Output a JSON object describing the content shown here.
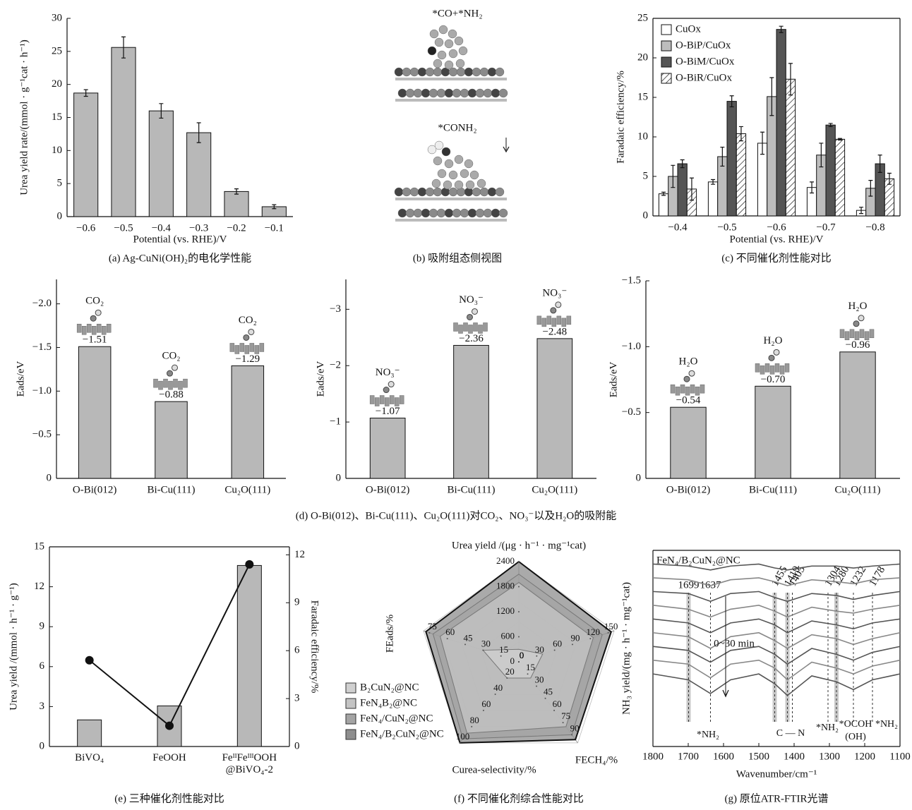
{
  "chart_data": [
    {
      "type": "bar",
      "caption": "(a) Ag-CuNi(OH)₂的电化学性能",
      "xlabel": "Potential (vs. RHE)/V",
      "ylabel": "Urea yield rate/(mmol · g⁻¹cat · h⁻¹)",
      "categories": [
        "−0.6",
        "−0.5",
        "−0.4",
        "−0.3",
        "−0.2",
        "−0.1"
      ],
      "values": [
        18.7,
        25.6,
        16.0,
        12.7,
        3.8,
        1.5
      ],
      "errors": [
        0.5,
        1.6,
        1.1,
        1.5,
        0.4,
        0.3
      ],
      "color": "#b8b8b8",
      "ylim": [
        0,
        30
      ],
      "yticks": [
        0,
        5,
        10,
        15,
        20,
        25,
        30
      ]
    },
    {
      "type": "bar",
      "caption": "(c) 不同催化剂性能对比",
      "xlabel": "Potential (vs. RHE)/V",
      "ylabel": "Faradaic efficiency/%",
      "box": true,
      "legend": "upper left",
      "categories": [
        "−0.4",
        "−0.5",
        "−0.6",
        "−0.7",
        "−0.8"
      ],
      "series": [
        {
          "name": "CuOx",
          "color": "#ffffff",
          "values": [
            2.8,
            4.3,
            9.2,
            3.6,
            0.7
          ],
          "errors": [
            0.2,
            0.3,
            1.4,
            0.7,
            0.4
          ]
        },
        {
          "name": "O-BiP/CuOx",
          "color": "#bdbdbd",
          "values": [
            5.0,
            7.5,
            15.1,
            7.7,
            3.5
          ],
          "errors": [
            1.4,
            1.2,
            2.4,
            1.5,
            1.0
          ]
        },
        {
          "name": "O-BiM/CuOx",
          "color": "#555555",
          "values": [
            6.6,
            14.5,
            23.6,
            11.5,
            6.6
          ],
          "errors": [
            0.5,
            0.7,
            0.4,
            0.2,
            1.1
          ]
        },
        {
          "name": "O-BiR/CuOx",
          "color": "#ffffff",
          "hatch": true,
          "values": [
            3.4,
            10.4,
            17.3,
            9.7,
            4.7
          ],
          "errors": [
            1.4,
            0.9,
            2.0,
            0.1,
            0.7
          ]
        }
      ],
      "ylim": [
        0,
        25
      ],
      "yticks": [
        0,
        5,
        10,
        15,
        20,
        25
      ]
    },
    {
      "type": "bar",
      "ylabel": "Eads/eV",
      "categories": [
        "O-Bi(012)",
        "Bi-Cu(111)",
        "Cu₂O(111)"
      ],
      "values": [
        -1.51,
        -0.88,
        -1.29
      ],
      "value_labels": [
        "−1.51",
        "−0.88",
        "−1.29"
      ],
      "molecules": [
        "CO₂",
        "CO₂",
        "CO₂"
      ],
      "color": "#b8b8b8",
      "ylim": [
        0,
        -2.28
      ],
      "yticks": [
        0,
        {
          "value": -0.5,
          "label": "−0.5"
        },
        {
          "value": -1,
          "label": "−1.0"
        },
        {
          "value": -1.5,
          "label": "−1.5"
        },
        {
          "value": -2,
          "label": "−2.0"
        }
      ]
    },
    {
      "type": "bar",
      "ylabel": "Eads/eV",
      "categories": [
        "O-Bi(012)",
        "Bi-Cu(111)",
        "Cu₂O(111)"
      ],
      "values": [
        -1.07,
        -2.36,
        -2.48
      ],
      "value_labels": [
        "−1.07",
        "−2.36",
        "−2.48"
      ],
      "molecules": [
        "NO₃⁻",
        "NO₃⁻",
        "NO₃⁻"
      ],
      "color": "#b8b8b8",
      "ylim": [
        0,
        -3.53
      ],
      "yticks": [
        0,
        {
          "value": -1,
          "label": "−1"
        },
        {
          "value": -2,
          "label": "−2"
        },
        {
          "value": -3,
          "label": "−3"
        }
      ]
    },
    {
      "type": "bar",
      "ylabel": "Eads/eV",
      "categories": [
        "O-Bi(012)",
        "Bi-Cu(111)",
        "Cu₂O(111)"
      ],
      "values": [
        -0.54,
        -0.7,
        -0.96
      ],
      "value_labels": [
        "−0.54",
        "−0.70",
        "−0.96"
      ],
      "molecules": [
        "H₂O",
        "H₂O",
        "H₂O"
      ],
      "color": "#b8b8b8",
      "ylim": [
        0,
        -1.5
      ],
      "yticks": [
        0,
        {
          "value": -0.5,
          "label": "−0.5"
        },
        {
          "value": -1,
          "label": "−1.0"
        },
        {
          "value": -1.5,
          "label": "−1.5"
        }
      ]
    },
    {
      "type": "bar_line",
      "caption": "(e) 三种催化剂性能对比",
      "ylabel": "Urea yield /(mmol · h⁻¹ · g⁻¹)",
      "y2label": "Faradaic efficiency/%",
      "box": true,
      "categories": [
        "BiVO₄",
        "FeOOH",
        "FeᴵᴵFeᴵᴵᴵOOH\n@BiVO₄-2"
      ],
      "series": [
        {
          "kind": "bar",
          "color": "#b8b8b8",
          "values": [
            2.0,
            3.05,
            13.6
          ]
        },
        {
          "kind": "line",
          "axis": "y2",
          "color": "#111111",
          "values": [
            5.4,
            1.3,
            11.4
          ]
        }
      ],
      "ylim": [
        0,
        15
      ],
      "yticks": [
        0,
        3,
        6,
        9,
        12,
        15
      ],
      "y2lim": [
        0,
        12.5
      ],
      "y2ticks": [
        0,
        3,
        6,
        9,
        12
      ]
    },
    {
      "type": "radar",
      "caption": "(f) 不同催化剂综合性能对比",
      "legend": "lower left",
      "axes": [
        {
          "label": "Urea yield /(μg · h⁻¹ · mg⁻¹cat)",
          "lim": [
            0,
            2400
          ],
          "ticks": [
            0,
            600,
            1200,
            1800,
            2400
          ]
        },
        {
          "lim": [
            0,
            160
          ],
          "ticks": [
            0,
            30,
            60,
            90,
            120,
            150
          ]
        },
        {
          "label": "FECH₄/%",
          "lim": [
            0,
            100
          ],
          "ticks": [
            0,
            15,
            30,
            45,
            60,
            75,
            90
          ]
        },
        {
          "label": "Curea-selectivity/%",
          "lim": [
            0,
            100
          ],
          "ticks": [
            0,
            20,
            40,
            60,
            80,
            100
          ]
        },
        {
          "label": "FEads/%",
          "lim": [
            0,
            80
          ],
          "ticks": [
            0,
            15,
            30,
            45,
            60,
            75
          ]
        }
      ],
      "series": [
        {
          "name": "B₂CuN₂@NC",
          "color": "#d0d0d0",
          "values": [
            300,
            40,
            20,
            20,
            30
          ]
        },
        {
          "name": "FeN₄B₂@NC",
          "color": "#c4c4c4",
          "values": [
            1900,
            125,
            80,
            88,
            66
          ]
        },
        {
          "name": "FeN₄/CuN₂@NC",
          "color": "#a4a4a4",
          "values": [
            2100,
            140,
            90,
            95,
            72
          ]
        },
        {
          "name": "FeN₄/B₂CuN₂@NC",
          "color": "#8e8e8e",
          "values": [
            2400,
            155,
            96,
            100,
            78
          ]
        }
      ]
    },
    {
      "type": "spectra",
      "caption": "(g) 原位ATR-FTIR光谱",
      "title": "FeN₄/B₂CuN₂@NC",
      "xlabel": "Wavenumber/cm⁻¹",
      "ylabel": "NH₃ yield/(mg · h⁻¹ · mg⁻¹cat)",
      "box": true,
      "time_label": "0~30 min",
      "xlim": [
        1800,
        1100
      ],
      "xticks": [
        1800,
        1700,
        1600,
        1500,
        1400,
        1300,
        1200,
        1100
      ],
      "ylim": [
        0,
        10
      ],
      "x": [
        1800,
        1700,
        1637,
        1580,
        1500,
        1455,
        1419,
        1350,
        1280,
        1232,
        1178,
        1100
      ],
      "series": [
        {
          "color": "#555555",
          "values": [
            9.3,
            9.2,
            9.0,
            9.2,
            9.3,
            9.1,
            9.0,
            9.2,
            9.2,
            9.1,
            9.2,
            9.3
          ]
        },
        {
          "color": "#888888",
          "values": [
            8.6,
            8.5,
            8.2,
            8.5,
            8.6,
            8.4,
            8.2,
            8.5,
            8.4,
            8.3,
            8.5,
            8.6
          ]
        },
        {
          "color": "#555555",
          "values": [
            7.9,
            7.8,
            7.4,
            7.8,
            7.9,
            7.6,
            7.4,
            7.8,
            7.7,
            7.5,
            7.7,
            7.9
          ]
        },
        {
          "color": "#888888",
          "values": [
            7.2,
            7.0,
            6.6,
            7.0,
            7.2,
            6.9,
            6.6,
            7.1,
            6.9,
            6.8,
            7.0,
            7.2
          ]
        },
        {
          "color": "#555555",
          "values": [
            6.5,
            6.3,
            5.8,
            6.3,
            6.5,
            6.2,
            5.8,
            6.4,
            6.2,
            6.0,
            6.3,
            6.5
          ]
        },
        {
          "color": "#888888",
          "values": [
            5.8,
            5.6,
            5.0,
            5.6,
            5.8,
            5.4,
            5.0,
            5.7,
            5.5,
            5.2,
            5.5,
            5.8
          ]
        },
        {
          "color": "#555555",
          "values": [
            5.1,
            4.9,
            4.3,
            4.9,
            5.1,
            4.7,
            4.2,
            5.0,
            4.7,
            4.4,
            4.8,
            5.1
          ]
        },
        {
          "color": "#888888",
          "values": [
            4.4,
            4.2,
            3.5,
            4.2,
            4.4,
            4.0,
            3.4,
            4.3,
            4.0,
            3.7,
            4.1,
            4.4
          ]
        },
        {
          "color": "#555555",
          "values": [
            3.7,
            3.4,
            2.7,
            3.4,
            3.7,
            3.2,
            2.6,
            3.6,
            3.3,
            2.9,
            3.4,
            3.7
          ]
        }
      ],
      "peaks": [
        1699,
        1637,
        1455,
        1419,
        1405,
        1304,
        1280,
        1232,
        1178
      ],
      "bands": [
        1699,
        1455,
        1419,
        1280
      ],
      "assignments": [
        "*NH₂",
        "C — N",
        "*NH₂",
        "*OCOH",
        "(OH)",
        "*NH₂"
      ]
    }
  ],
  "panel_b": {
    "labels": [
      "*CO+*NH₂",
      "*CONH₂"
    ],
    "caption": "(b) 吸附组态侧视图"
  },
  "caption_d": "(d) O-Bi(012)、Bi-Cu(111)、Cu₂O(111)对CO₂、NO₃⁻以及H₂O的吸附能"
}
